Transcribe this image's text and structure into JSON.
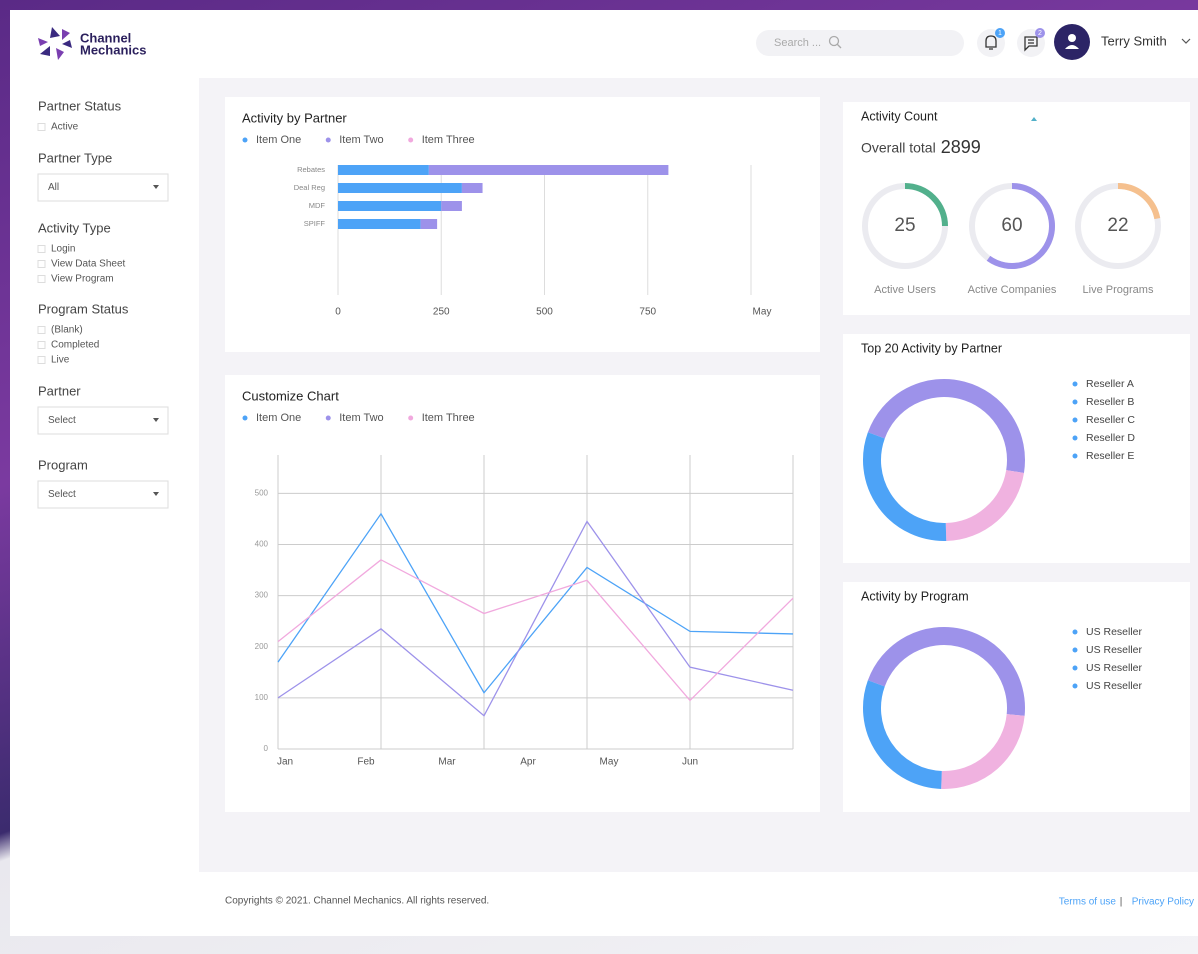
{
  "header": {
    "logo": [
      "Channel",
      "Mechanics"
    ],
    "search_placeholder": "Search ...",
    "notifications": "1",
    "messages": "2",
    "user": "Terry Smith"
  },
  "filters": [
    {
      "label": "Partner Status",
      "options": [
        "Active"
      ]
    },
    {
      "label": "Partner Type",
      "select": "All"
    },
    {
      "label": "Activity Type",
      "options": [
        "Login",
        "View Data Sheet",
        "View Program"
      ]
    },
    {
      "label": "Program Status",
      "options": [
        "(Blank)",
        "Completed",
        "Live"
      ]
    },
    {
      "label": "Partner",
      "select": "Select"
    },
    {
      "label": "Program",
      "select": "Select"
    }
  ],
  "chart_data": [
    {
      "type": "bar",
      "orientation": "horizontal",
      "stacked": true,
      "title": "Activity by Partner",
      "categories": [
        "Rebates",
        "Deal Reg",
        "MDF",
        "SPIFF"
      ],
      "series": [
        {
          "name": "Item One",
          "color": "#4da3f7",
          "values": [
            220,
            300,
            250,
            200
          ]
        },
        {
          "name": "Item Two",
          "color": "#9d92ea",
          "values": [
            580,
            50,
            50,
            40
          ]
        },
        {
          "name": "Item Three",
          "color": "#f1a9de",
          "values": [
            0,
            0,
            0,
            0
          ]
        }
      ],
      "xlim": [
        0,
        1000
      ],
      "xticks": [
        0,
        250,
        500,
        750,
        {
          "value": 1000,
          "label": "May"
        }
      ],
      "grid": true
    },
    {
      "type": "line",
      "title": "Customize Chart",
      "categories": [
        "Jan",
        "Feb",
        "Mar",
        "Apr",
        "May",
        "Jun"
      ],
      "series": [
        {
          "name": "Item One",
          "color": "#4da3f7",
          "values": [
            170,
            460,
            110,
            355,
            230,
            225
          ]
        },
        {
          "name": "Item Two",
          "color": "#9d92ea",
          "values": [
            100,
            235,
            65,
            445,
            160,
            115
          ]
        },
        {
          "name": "Item Three",
          "color": "#f1a9de",
          "values": [
            210,
            370,
            265,
            330,
            95,
            295
          ]
        }
      ],
      "ylim": [
        0,
        575
      ],
      "yticks": [
        0,
        100,
        200,
        300,
        400,
        500
      ],
      "grid": true
    },
    {
      "type": "gauge",
      "title": "Activity Count",
      "total_label": "Overall total",
      "total": 2899,
      "categories": [
        "Active Users",
        "Active Companies",
        "Live Programs"
      ],
      "values": [
        25,
        60,
        22
      ],
      "colors": [
        "#52b08c",
        "#9d92ea",
        "#f5c08e"
      ]
    },
    {
      "type": "donut",
      "title": "Top 20 Activity by Partner",
      "legend": [
        "Reseller A",
        "Reseller B",
        "Reseller C",
        "Reseller D",
        "Reseller E"
      ],
      "legend_color": "#4da3f7",
      "values": [
        47,
        22,
        31
      ],
      "colors": [
        "#9d92ea",
        "#f0b2e0",
        "#4da3f7"
      ]
    },
    {
      "type": "donut",
      "title": "Activity by Program",
      "legend": [
        "US Reseller",
        "US Reseller",
        "US Reseller",
        "US Reseller"
      ],
      "legend_color": "#4da3f7",
      "values": [
        46,
        24,
        30
      ],
      "colors": [
        "#9d92ea",
        "#f0b2e0",
        "#4da3f7"
      ]
    }
  ],
  "footer": {
    "copyright": "Copyrights © 2021. Channel Mechanics. All rights reserved.",
    "links": [
      "Terms of use",
      "Privacy Policy"
    ],
    "separator": "|"
  }
}
